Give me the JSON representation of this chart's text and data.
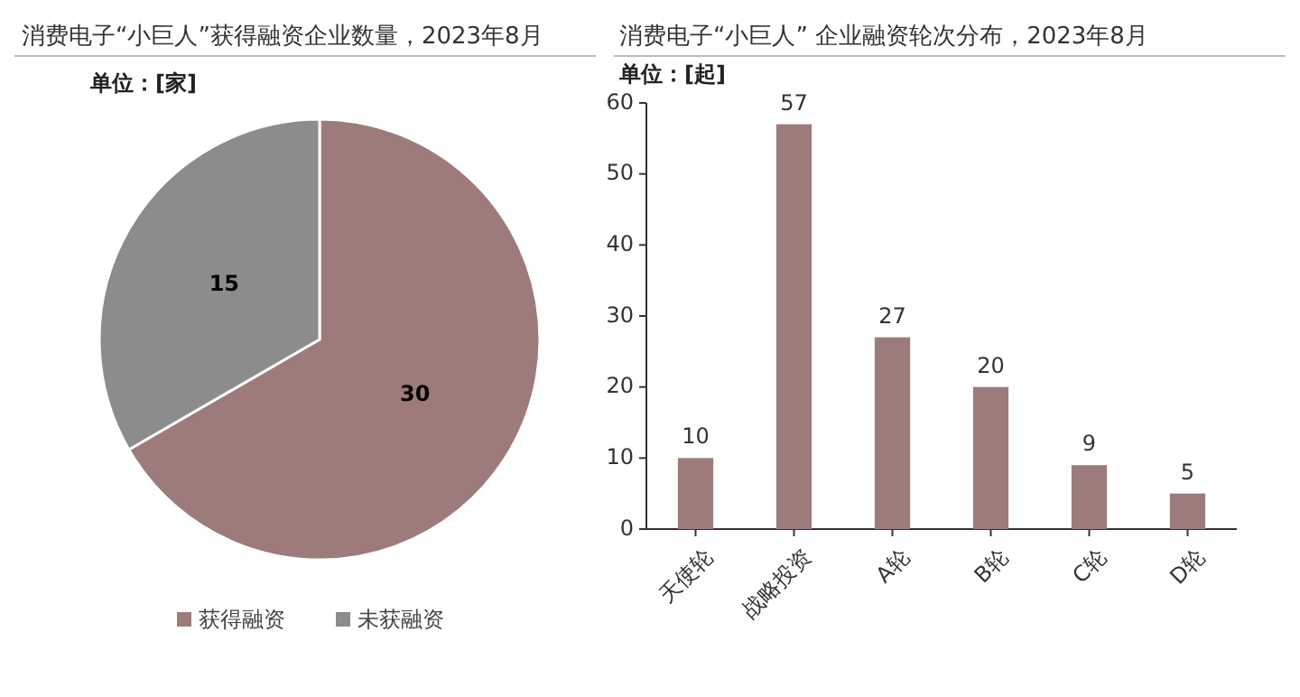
{
  "chart_data": [
    {
      "type": "pie",
      "title": "消费电子“小巨人”获得融资企业数量，2023年8月",
      "annotations": [
        "单位：[家]"
      ],
      "categories": [
        "获得融资",
        "未获融资"
      ],
      "values": [
        30,
        15
      ],
      "colors": [
        "#9e7b7b",
        "#8c8c8c"
      ],
      "data_labels": true,
      "legend": "bottom"
    },
    {
      "type": "bar",
      "title": "消费电子“小巨人” 企业融资轮次分布，2023年8月",
      "ylabel": "单位：[起]",
      "categories": [
        "天使轮",
        "战略投资",
        "A轮",
        "B轮",
        "C轮",
        "D轮"
      ],
      "values": [
        10,
        57,
        27,
        20,
        9,
        5
      ],
      "color": "#9e7b7b",
      "ylim": [
        0,
        60
      ],
      "yticks": [
        0,
        10,
        20,
        30,
        40,
        50,
        60
      ],
      "data_labels": true,
      "grid": false
    }
  ]
}
